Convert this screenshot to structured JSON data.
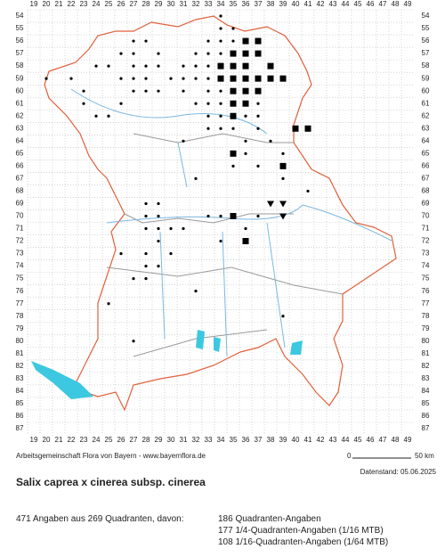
{
  "grid": {
    "columns": [
      19,
      20,
      21,
      22,
      23,
      24,
      25,
      26,
      27,
      28,
      29,
      30,
      31,
      32,
      33,
      34,
      35,
      36,
      37,
      38,
      39,
      40,
      41,
      42,
      43,
      44,
      45,
      46,
      47,
      48,
      49
    ],
    "rows": [
      54,
      55,
      56,
      57,
      58,
      59,
      60,
      61,
      62,
      63,
      64,
      65,
      66,
      67,
      68,
      69,
      70,
      71,
      72,
      73,
      74,
      75,
      76,
      77,
      78,
      79,
      80,
      81,
      82,
      83,
      84,
      85,
      86,
      87
    ]
  },
  "credit": "Arbeitsgemeinschaft Flora von Bayern - www.bayernflora.de",
  "scale": {
    "start": "0",
    "end": "50 km"
  },
  "date": "Datenstand: 05.06.2025",
  "title": "Salix caprea x cinerea subsp. cinerea",
  "summary": "471 Angaben aus 269 Quadranten, davon:",
  "breakdown": [
    "186 Quadranten-Angaben",
    "177 1/4-Quadranten-Angaben (1/16 MTB)",
    "108 1/16-Quadranten-Angaben (1/64 MTB)"
  ],
  "markers": {
    "dots": [
      [
        34,
        54
      ],
      [
        34,
        55
      ],
      [
        35,
        55
      ],
      [
        27,
        56
      ],
      [
        28,
        56
      ],
      [
        33,
        56
      ],
      [
        34,
        56
      ],
      [
        35,
        56
      ],
      [
        26,
        57
      ],
      [
        27,
        57
      ],
      [
        29,
        57
      ],
      [
        32,
        57
      ],
      [
        33,
        57
      ],
      [
        34,
        57
      ],
      [
        24,
        58
      ],
      [
        25,
        58
      ],
      [
        27,
        58
      ],
      [
        28,
        58
      ],
      [
        29,
        58
      ],
      [
        31,
        58
      ],
      [
        32,
        58
      ],
      [
        33,
        58
      ],
      [
        20,
        59
      ],
      [
        22,
        59
      ],
      [
        26,
        59
      ],
      [
        27,
        59
      ],
      [
        28,
        59
      ],
      [
        30,
        59
      ],
      [
        31,
        59
      ],
      [
        32,
        59
      ],
      [
        33,
        59
      ],
      [
        23,
        60
      ],
      [
        27,
        60
      ],
      [
        28,
        60
      ],
      [
        29,
        60
      ],
      [
        31,
        60
      ],
      [
        33,
        60
      ],
      [
        34,
        60
      ],
      [
        23,
        61
      ],
      [
        26,
        61
      ],
      [
        32,
        61
      ],
      [
        33,
        61
      ],
      [
        34,
        61
      ],
      [
        37,
        61
      ],
      [
        24,
        62
      ],
      [
        25,
        62
      ],
      [
        33,
        62
      ],
      [
        34,
        62
      ],
      [
        36,
        62
      ],
      [
        37,
        62
      ],
      [
        33,
        63
      ],
      [
        34,
        63
      ],
      [
        35,
        63
      ],
      [
        37,
        63
      ],
      [
        31,
        64
      ],
      [
        36,
        64
      ],
      [
        38,
        64
      ],
      [
        36,
        65
      ],
      [
        39,
        65
      ],
      [
        35,
        66
      ],
      [
        37,
        66
      ],
      [
        32,
        67
      ],
      [
        39,
        67
      ],
      [
        41,
        68
      ],
      [
        28,
        69
      ],
      [
        29,
        69
      ],
      [
        38,
        69
      ],
      [
        28,
        70
      ],
      [
        29,
        70
      ],
      [
        33,
        70
      ],
      [
        34,
        70
      ],
      [
        37,
        70
      ],
      [
        28,
        71
      ],
      [
        29,
        71
      ],
      [
        30,
        71
      ],
      [
        31,
        71
      ],
      [
        36,
        71
      ],
      [
        29,
        72
      ],
      [
        34,
        72
      ],
      [
        26,
        73
      ],
      [
        28,
        73
      ],
      [
        30,
        73
      ],
      [
        28,
        74
      ],
      [
        29,
        74
      ],
      [
        27,
        75
      ],
      [
        28,
        75
      ],
      [
        32,
        76
      ],
      [
        25,
        77
      ],
      [
        39,
        78
      ],
      [
        27,
        80
      ]
    ],
    "squares": [
      [
        36,
        56
      ],
      [
        37,
        56
      ],
      [
        35,
        57
      ],
      [
        36,
        57
      ],
      [
        37,
        57
      ],
      [
        34,
        58
      ],
      [
        35,
        58
      ],
      [
        36,
        58
      ],
      [
        38,
        58
      ],
      [
        34,
        59
      ],
      [
        35,
        59
      ],
      [
        36,
        59
      ],
      [
        37,
        59
      ],
      [
        38,
        59
      ],
      [
        39,
        59
      ],
      [
        35,
        60
      ],
      [
        36,
        60
      ],
      [
        37,
        60
      ],
      [
        35,
        61
      ],
      [
        36,
        61
      ],
      [
        35,
        62
      ],
      [
        40,
        63
      ],
      [
        41,
        63
      ],
      [
        35,
        65
      ],
      [
        39,
        66
      ],
      [
        35,
        70
      ],
      [
        36,
        72
      ]
    ],
    "triangles": [
      [
        38,
        69
      ],
      [
        39,
        69
      ],
      [
        39,
        70
      ]
    ]
  }
}
